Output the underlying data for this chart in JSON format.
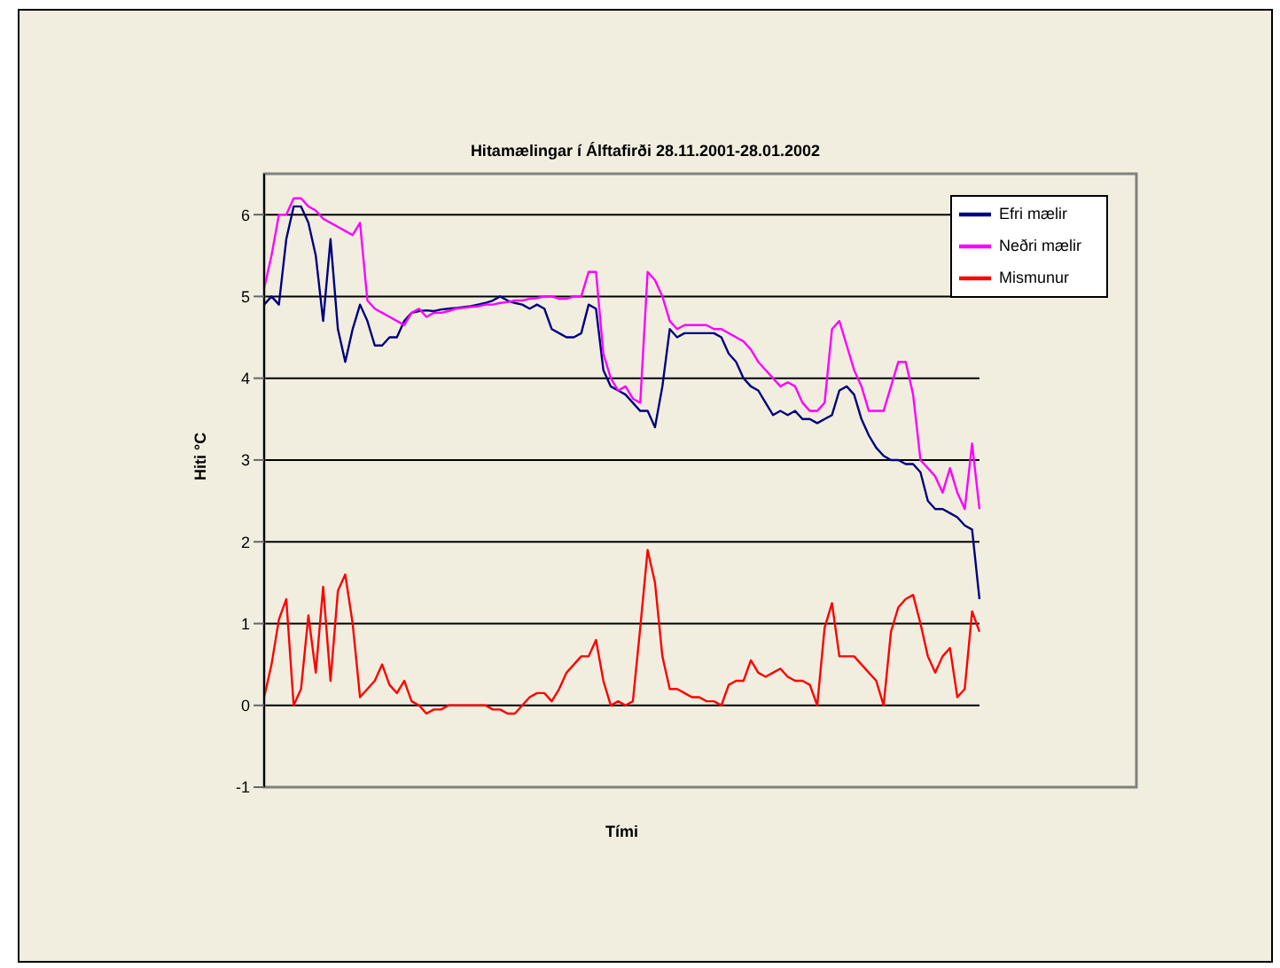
{
  "chart_data": {
    "type": "line",
    "title": "Hitamælingar í Álftafirði 28.11.2001-28.01.2002",
    "xlabel": "Tími",
    "ylabel": "Hiti °C",
    "categories": [
      null,
      null,
      null,
      null,
      null,
      null,
      null,
      null,
      null,
      null,
      null,
      null,
      null,
      null,
      null,
      null,
      null,
      null,
      null,
      null,
      null,
      null,
      null,
      null,
      null,
      null,
      null,
      null,
      null,
      null,
      null,
      null,
      null,
      null,
      null,
      null,
      null,
      null,
      null,
      null,
      null,
      null,
      null,
      null,
      null,
      null,
      null,
      null,
      null,
      null,
      null,
      null,
      null,
      null,
      null,
      null,
      null,
      null,
      null,
      null,
      null,
      null,
      null,
      null,
      null,
      null,
      null,
      null,
      null,
      null,
      null,
      null,
      null,
      null,
      null,
      null,
      null,
      null,
      null,
      null,
      null,
      null,
      null,
      null,
      null,
      null,
      null,
      null,
      null,
      null,
      null,
      null,
      null,
      null,
      null,
      null,
      null,
      null
    ],
    "series": [
      {
        "name": "Efri mælir",
        "color": "#000080",
        "values": [
          4.9,
          5.0,
          4.9,
          5.7,
          6.1,
          6.1,
          5.9,
          5.5,
          4.7,
          5.7,
          4.6,
          4.2,
          4.6,
          4.9,
          4.7,
          4.4,
          4.4,
          4.5,
          4.5,
          4.7,
          4.8,
          4.82,
          4.83,
          4.82,
          4.84,
          4.85,
          4.86,
          4.87,
          4.88,
          4.9,
          4.92,
          4.95,
          5.0,
          4.95,
          4.92,
          4.9,
          4.85,
          4.9,
          4.85,
          4.6,
          4.55,
          4.5,
          4.5,
          4.55,
          4.9,
          4.85,
          4.1,
          3.9,
          3.85,
          3.8,
          3.7,
          3.6,
          3.6,
          3.4,
          3.9,
          4.6,
          4.5,
          4.55,
          4.55,
          4.55,
          4.55,
          4.55,
          4.5,
          4.3,
          4.2,
          4.0,
          3.9,
          3.85,
          3.7,
          3.55,
          3.6,
          3.55,
          3.6,
          3.5,
          3.5,
          3.45,
          3.5,
          3.55,
          3.85,
          3.9,
          3.8,
          3.5,
          3.3,
          3.15,
          3.05,
          3.0,
          3.0,
          2.95,
          2.95,
          2.85,
          2.5,
          2.4,
          2.4,
          2.35,
          2.3,
          2.2,
          2.15,
          1.3
        ]
      },
      {
        "name": "Neðri mælir",
        "color": "#ff00ff",
        "values": [
          5.1,
          5.5,
          6.0,
          6.0,
          6.2,
          6.2,
          6.1,
          6.05,
          5.95,
          5.9,
          5.85,
          5.8,
          5.75,
          5.9,
          4.95,
          4.85,
          4.8,
          4.75,
          4.7,
          4.65,
          4.8,
          4.85,
          4.75,
          4.8,
          4.8,
          4.82,
          4.85,
          4.86,
          4.87,
          4.88,
          4.9,
          4.9,
          4.92,
          4.93,
          4.95,
          4.95,
          4.97,
          4.98,
          5.0,
          5.0,
          4.97,
          4.97,
          5.0,
          5.0,
          5.3,
          5.3,
          4.3,
          4.0,
          3.85,
          3.9,
          3.75,
          3.7,
          5.3,
          5.2,
          5.0,
          4.7,
          4.6,
          4.65,
          4.65,
          4.65,
          4.65,
          4.6,
          4.6,
          4.55,
          4.5,
          4.45,
          4.35,
          4.2,
          4.1,
          4.0,
          3.9,
          3.95,
          3.9,
          3.7,
          3.6,
          3.6,
          3.7,
          4.6,
          4.7,
          4.4,
          4.1,
          3.9,
          3.6,
          3.6,
          3.6,
          3.9,
          4.2,
          4.2,
          3.8,
          3.0,
          2.9,
          2.8,
          2.6,
          2.9,
          2.6,
          2.4,
          3.2,
          2.4
        ]
      },
      {
        "name": "Mismunur",
        "color": "#ff0000",
        "values": [
          0.1,
          0.5,
          1.05,
          1.3,
          0.0,
          0.2,
          1.1,
          0.4,
          1.45,
          0.3,
          1.4,
          1.6,
          1.0,
          0.1,
          0.2,
          0.3,
          0.5,
          0.25,
          0.15,
          0.3,
          0.05,
          0.0,
          -0.1,
          -0.05,
          -0.05,
          0.0,
          0.0,
          0.0,
          0.0,
          0.0,
          0.0,
          -0.05,
          -0.05,
          -0.1,
          -0.1,
          0.0,
          0.1,
          0.15,
          0.15,
          0.05,
          0.2,
          0.4,
          0.5,
          0.6,
          0.6,
          0.8,
          0.3,
          0.0,
          0.05,
          0.0,
          0.05,
          0.95,
          1.9,
          1.5,
          0.6,
          0.2,
          0.2,
          0.15,
          0.1,
          0.1,
          0.05,
          0.05,
          0.0,
          0.25,
          0.3,
          0.3,
          0.55,
          0.4,
          0.35,
          0.4,
          0.45,
          0.35,
          0.3,
          0.3,
          0.25,
          0.0,
          0.95,
          1.25,
          0.6,
          0.6,
          0.6,
          0.5,
          0.4,
          0.3,
          0.0,
          0.9,
          1.2,
          1.3,
          1.35,
          1.0,
          0.6,
          0.4,
          0.6,
          0.7,
          0.1,
          0.2,
          1.15,
          0.9
        ]
      }
    ],
    "ylim": [
      -1,
      6.5
    ],
    "yticks": [
      -1,
      0,
      1,
      2,
      3,
      4,
      5,
      6
    ],
    "grid": "y",
    "legend": "top right",
    "tick_labels": "y",
    "marker": "none",
    "line_style": "solid"
  }
}
